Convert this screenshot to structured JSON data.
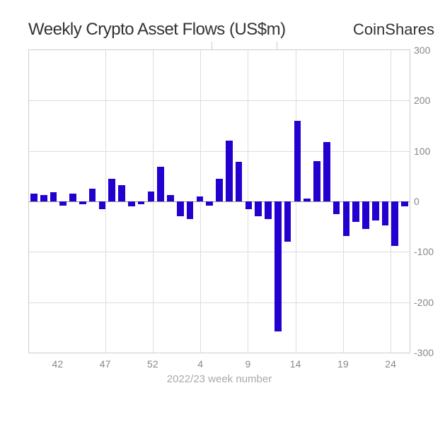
{
  "header": {
    "title": "Weekly Crypto Asset Flows (US$m)",
    "brand": "CoinShares"
  },
  "chart": {
    "type": "bar",
    "x_axis_title": "2022/23 week number",
    "x_tick_labels": [
      "42",
      "47",
      "52",
      "4",
      "9",
      "14",
      "19",
      "24"
    ],
    "y_tick_labels": [
      "-300",
      "-200",
      "-100",
      "0",
      "100",
      "200",
      "300"
    ],
    "ylim": [
      -300,
      300
    ],
    "bar_color": "#2400d0",
    "background_color": "#ffffff",
    "grid_color": "#dddddd",
    "border_color": "#cccccc",
    "text_color": "#888888",
    "title_fontsize": 24,
    "label_fontsize": 14,
    "bar_width_ratio": 0.7,
    "values": [
      15,
      12,
      18,
      -8,
      15,
      -5,
      25,
      -15,
      45,
      32,
      -10,
      -5,
      20,
      68,
      12,
      -30,
      -35,
      10,
      -8,
      45,
      120,
      78,
      -15,
      -30,
      -35,
      -258,
      -80,
      160,
      5,
      80,
      118,
      -25,
      -68,
      -40,
      -55,
      -38,
      -48,
      -88,
      -10
    ],
    "top_ticks_visible": true
  }
}
